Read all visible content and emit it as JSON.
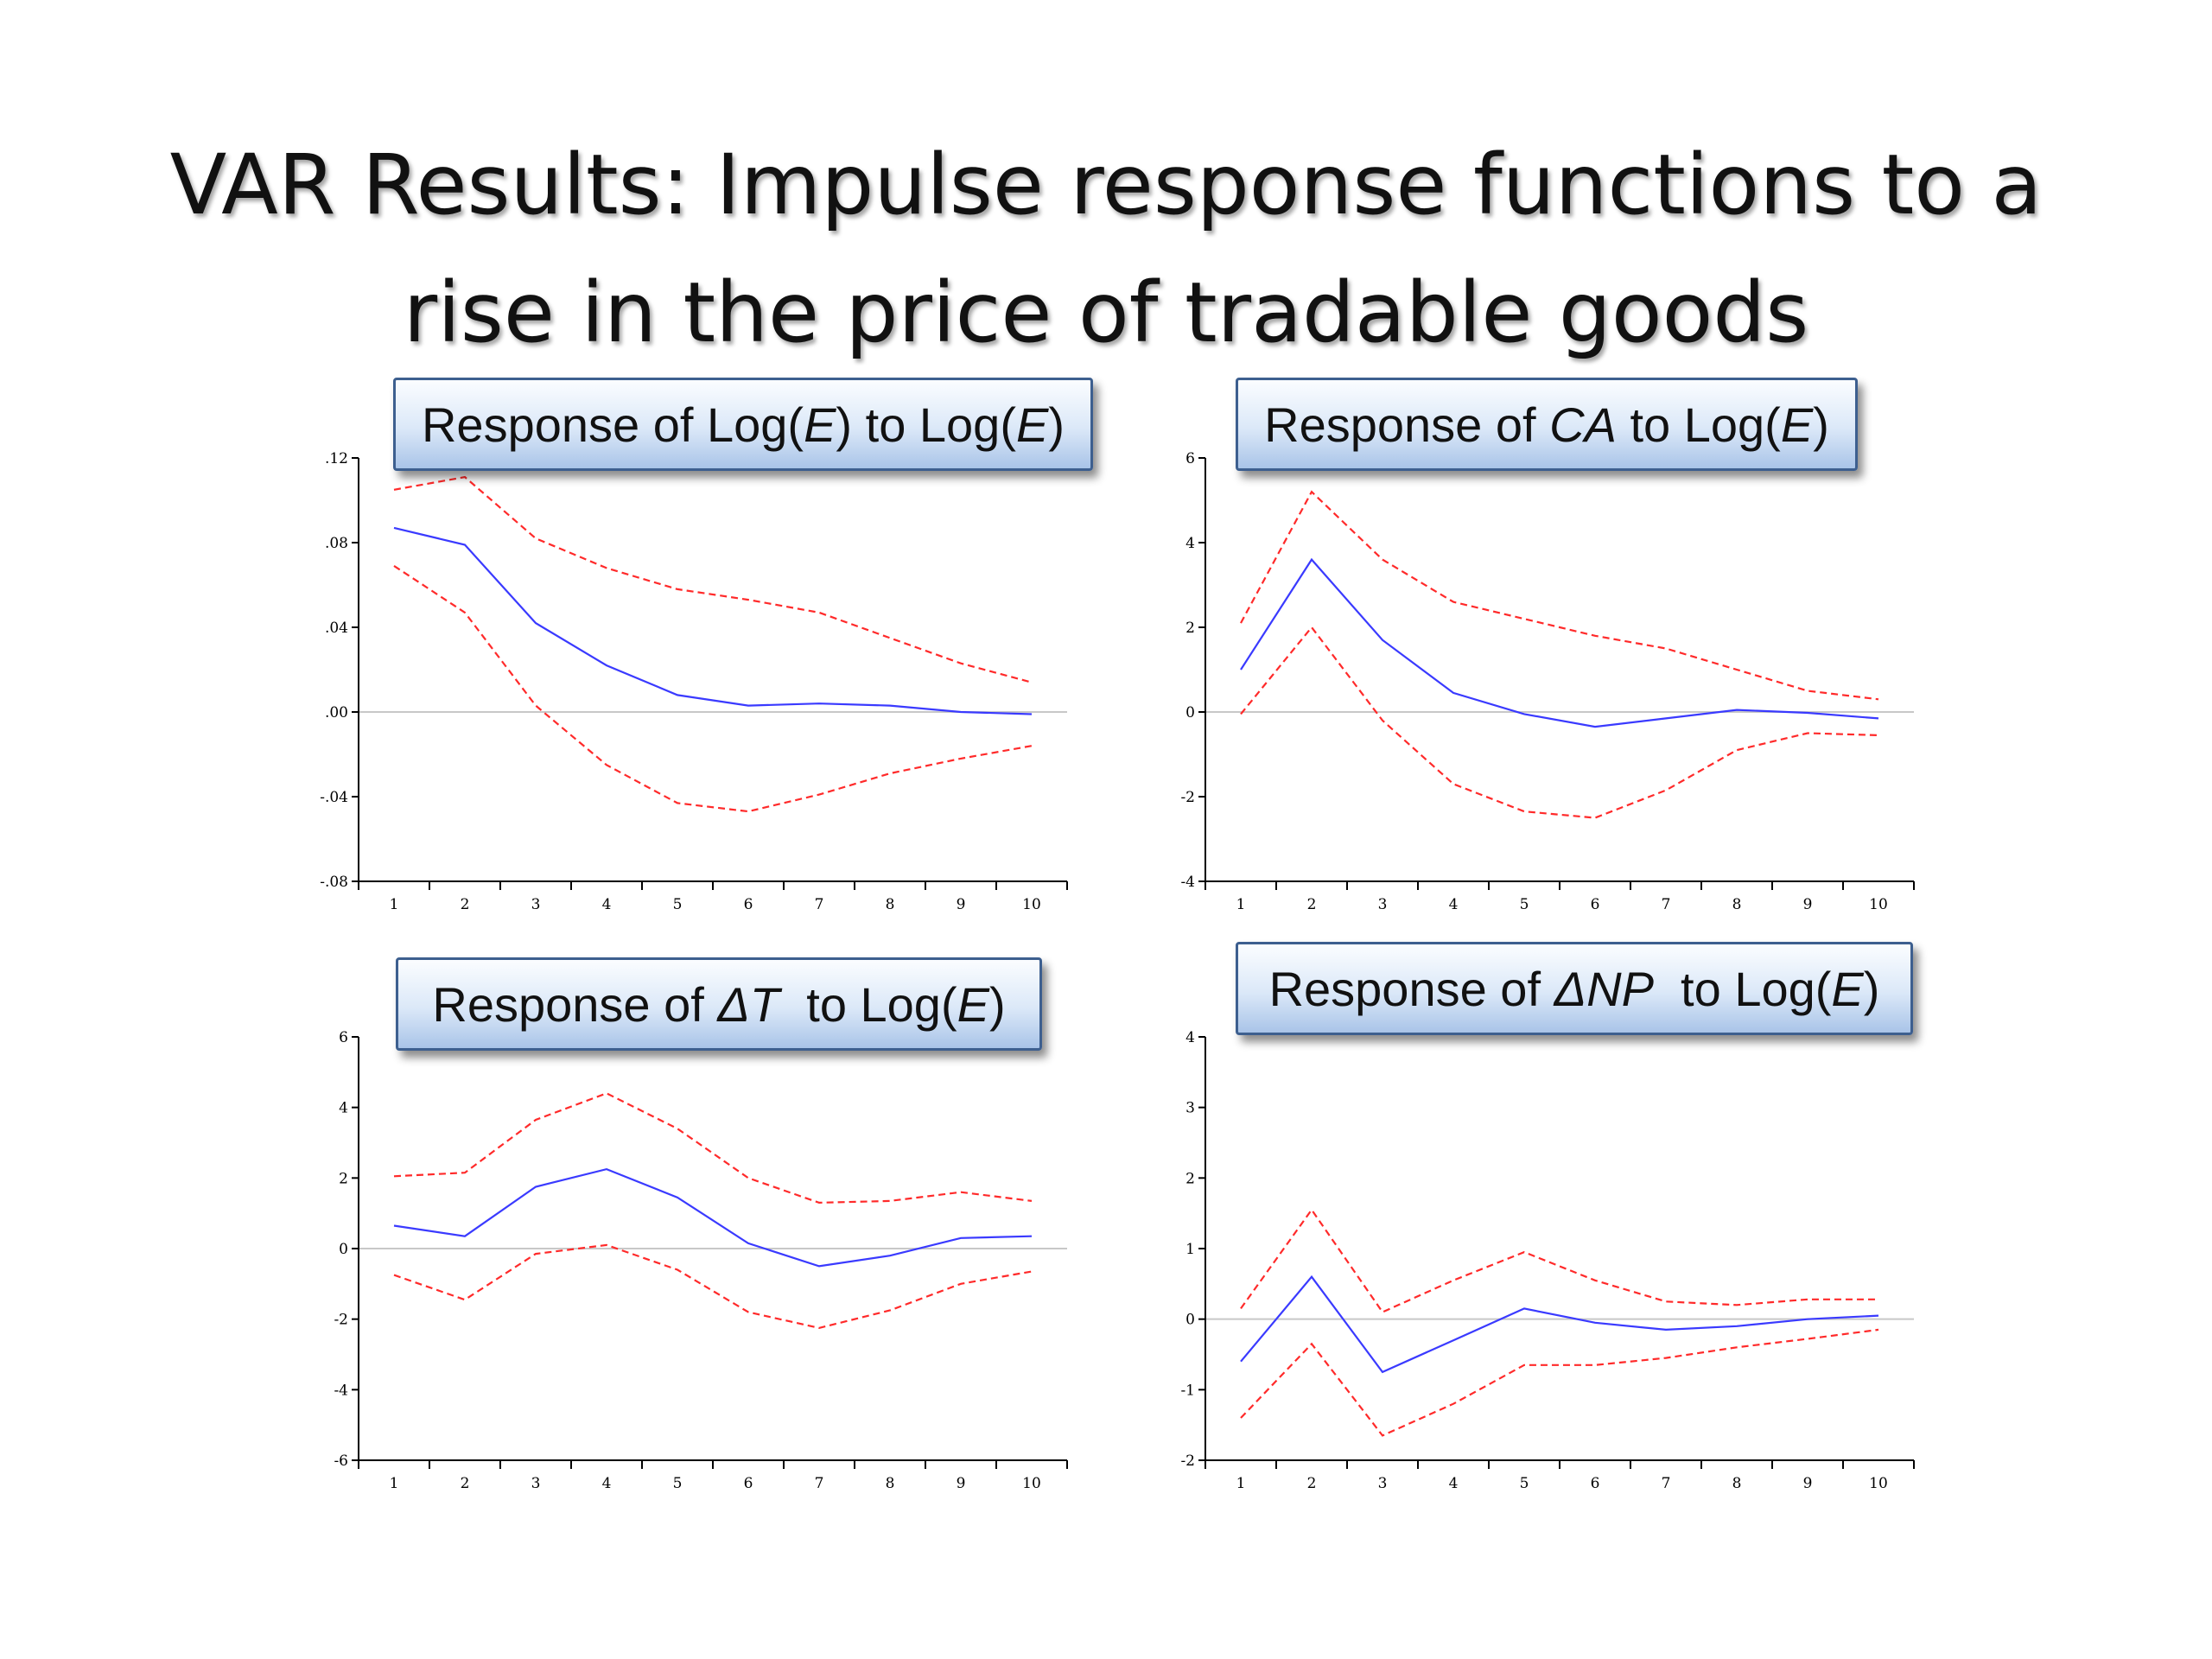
{
  "title": {
    "line1": "VAR Results: Impulse response functions to a",
    "line2": "rise in the price of tradable goods"
  },
  "colors": {
    "response": "#3a3aff",
    "bands": "#ff2a2a",
    "zero_line": "#c8c8c8"
  },
  "chart_data": [
    {
      "type": "line",
      "label_parts": [
        [
          "Response of Log(",
          ""
        ],
        [
          "E",
          "i"
        ],
        [
          ") to Log(",
          ""
        ],
        [
          "E",
          "i"
        ],
        [
          ")",
          ""
        ]
      ],
      "x": [
        1,
        2,
        3,
        4,
        5,
        6,
        7,
        8,
        9,
        10
      ],
      "ylim": [
        -0.08,
        0.12
      ],
      "yticks": [
        ".12",
        ".08",
        ".04",
        ".00",
        "-.04",
        "-.08"
      ],
      "xticks": [
        "1",
        "2",
        "3",
        "4",
        "5",
        "6",
        "7",
        "8",
        "9",
        "10"
      ],
      "series": [
        {
          "role": "response",
          "values": [
            0.087,
            0.079,
            0.042,
            0.022,
            0.008,
            0.003,
            0.004,
            0.003,
            0.0,
            -0.001
          ]
        },
        {
          "role": "upper",
          "values": [
            0.105,
            0.111,
            0.082,
            0.068,
            0.058,
            0.053,
            0.047,
            0.035,
            0.023,
            0.014
          ]
        },
        {
          "role": "lower",
          "values": [
            0.069,
            0.047,
            0.003,
            -0.025,
            -0.043,
            -0.047,
            -0.039,
            -0.029,
            -0.022,
            -0.016
          ]
        }
      ]
    },
    {
      "type": "line",
      "label_parts": [
        [
          "Response of ",
          ""
        ],
        [
          "CA",
          "i"
        ],
        [
          " to Log(",
          ""
        ],
        [
          "E",
          "i"
        ],
        [
          ")",
          ""
        ]
      ],
      "x": [
        1,
        2,
        3,
        4,
        5,
        6,
        7,
        8,
        9,
        10
      ],
      "ylim": [
        -4,
        6
      ],
      "yticks": [
        "6",
        "4",
        "2",
        "0",
        "-2",
        "-4"
      ],
      "xticks": [
        "1",
        "2",
        "3",
        "4",
        "5",
        "6",
        "7",
        "8",
        "9",
        "10"
      ],
      "series": [
        {
          "role": "response",
          "values": [
            1.0,
            3.6,
            1.7,
            0.45,
            -0.05,
            -0.35,
            -0.15,
            0.05,
            -0.02,
            -0.15
          ]
        },
        {
          "role": "upper",
          "values": [
            2.1,
            5.2,
            3.6,
            2.6,
            2.2,
            1.8,
            1.5,
            1.0,
            0.5,
            0.3
          ]
        },
        {
          "role": "lower",
          "values": [
            -0.05,
            2.0,
            -0.2,
            -1.7,
            -2.35,
            -2.5,
            -1.85,
            -0.9,
            -0.5,
            -0.55
          ]
        }
      ]
    },
    {
      "type": "line",
      "label_parts": [
        [
          "Response of ",
          ""
        ],
        [
          "ΔT",
          "i"
        ],
        [
          "  to Log(",
          ""
        ],
        [
          "E",
          "i"
        ],
        [
          ")",
          ""
        ]
      ],
      "x": [
        1,
        2,
        3,
        4,
        5,
        6,
        7,
        8,
        9,
        10
      ],
      "ylim": [
        -6,
        6
      ],
      "yticks": [
        "6",
        "4",
        "2",
        "0",
        "-2",
        "-4",
        "-6"
      ],
      "xticks": [
        "1",
        "2",
        "3",
        "4",
        "5",
        "6",
        "7",
        "8",
        "9",
        "10"
      ],
      "series": [
        {
          "role": "response",
          "values": [
            0.65,
            0.35,
            1.75,
            2.25,
            1.45,
            0.15,
            -0.5,
            -0.2,
            0.3,
            0.35
          ]
        },
        {
          "role": "upper",
          "values": [
            2.05,
            2.15,
            3.65,
            4.4,
            3.4,
            2.0,
            1.3,
            1.35,
            1.6,
            1.35
          ]
        },
        {
          "role": "lower",
          "values": [
            -0.75,
            -1.45,
            -0.15,
            0.1,
            -0.6,
            -1.8,
            -2.25,
            -1.75,
            -1.0,
            -0.65
          ]
        }
      ]
    },
    {
      "type": "line",
      "label_parts": [
        [
          "Response of ",
          ""
        ],
        [
          "ΔNP",
          "i"
        ],
        [
          "  to Log(",
          ""
        ],
        [
          "E",
          "i"
        ],
        [
          ")",
          ""
        ]
      ],
      "x": [
        1,
        2,
        3,
        4,
        5,
        6,
        7,
        8,
        9,
        10
      ],
      "ylim": [
        -2,
        4
      ],
      "yticks": [
        "4",
        "3",
        "2",
        "1",
        "0",
        "-1",
        "-2"
      ],
      "xticks": [
        "1",
        "2",
        "3",
        "4",
        "5",
        "6",
        "7",
        "8",
        "9",
        "10"
      ],
      "series": [
        {
          "role": "response",
          "values": [
            -0.6,
            0.6,
            -0.75,
            -0.3,
            0.15,
            -0.05,
            -0.15,
            -0.1,
            0.0,
            0.05
          ]
        },
        {
          "role": "upper",
          "values": [
            0.15,
            1.55,
            0.1,
            0.55,
            0.95,
            0.55,
            0.25,
            0.2,
            0.28,
            0.28
          ]
        },
        {
          "role": "lower",
          "values": [
            -1.4,
            -0.35,
            -1.65,
            -1.2,
            -0.65,
            -0.65,
            -0.55,
            -0.4,
            -0.28,
            -0.15
          ]
        }
      ]
    }
  ]
}
